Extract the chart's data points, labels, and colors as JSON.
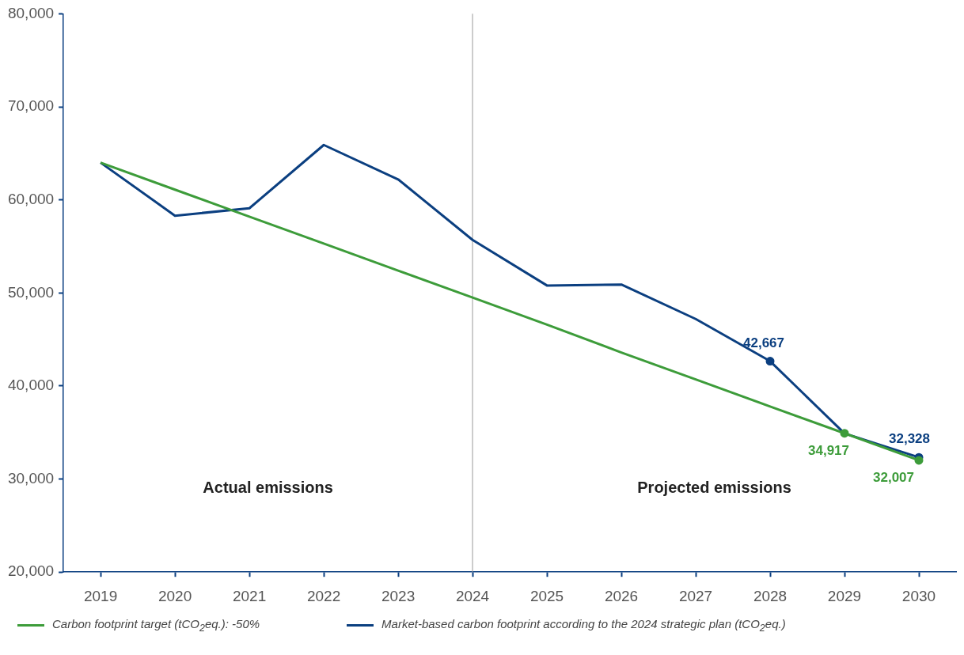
{
  "chart_data": {
    "type": "line",
    "categories": [
      "2019",
      "2020",
      "2021",
      "2022",
      "2023",
      "2024",
      "2025",
      "2026",
      "2027",
      "2028",
      "2029",
      "2030"
    ],
    "series": [
      {
        "name": "Carbon footprint target (tCO$_{2}$eq.): -50%",
        "color": "#3d9c3a",
        "values": [
          64000,
          61100,
          58200,
          55300,
          52400,
          49500,
          46600,
          43600,
          40700,
          37800,
          34917,
          32007
        ],
        "value_labels": [
          null,
          null,
          null,
          null,
          null,
          null,
          null,
          null,
          null,
          null,
          "34,917",
          "32,007"
        ]
      },
      {
        "name": "Market-based carbon footprint according to the 2024 strategic plan (tCO$_{2}$eq.)",
        "color": "#0b3f80",
        "values": [
          64000,
          58300,
          59100,
          65900,
          62200,
          55700,
          50800,
          50900,
          47200,
          42667,
          34900,
          32328
        ],
        "value_labels": [
          null,
          null,
          null,
          null,
          null,
          null,
          null,
          null,
          null,
          "42,667",
          null,
          "32,328"
        ]
      }
    ],
    "ylim": [
      20000,
      80000
    ],
    "yticks": [
      {
        "value": 20000,
        "label": "20,000"
      },
      {
        "value": 30000,
        "label": "30,000"
      },
      {
        "value": 40000,
        "label": "40,000"
      },
      {
        "value": 50000,
        "label": "50,000"
      },
      {
        "value": 60000,
        "label": "60,000"
      },
      {
        "value": 70000,
        "label": "70,000"
      },
      {
        "value": 80000,
        "label": "80,000"
      }
    ],
    "ref_lines": [
      {
        "axis": "x",
        "value": "2024",
        "color": "#999999"
      }
    ],
    "annotations": [
      "Actual emissions",
      "Projected emissions"
    ],
    "grid": false,
    "legend": "bottom",
    "line_style": "solid"
  }
}
